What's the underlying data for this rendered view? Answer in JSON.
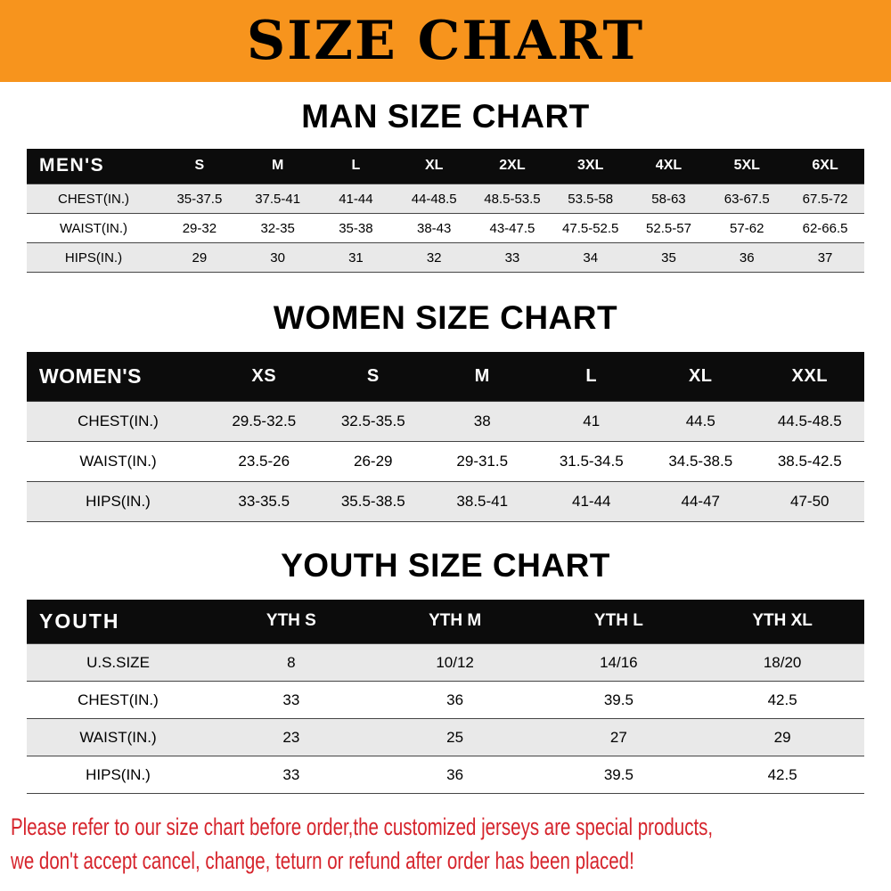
{
  "banner": {
    "title": "SIZE CHART"
  },
  "colors": {
    "banner_bg": "#f7941d",
    "table_header_bg": "#0c0c0c",
    "row_alt_gray": "#e9e9e9",
    "note_red": "#d6242c"
  },
  "sections": [
    {
      "heading": "MAN SIZE CHART",
      "table": {
        "header": [
          "MEN'S",
          "S",
          "M",
          "L",
          "XL",
          "2XL",
          "3XL",
          "4XL",
          "5XL",
          "6XL"
        ],
        "rows": [
          [
            "CHEST(IN.)",
            "35-37.5",
            "37.5-41",
            "41-44",
            "44-48.5",
            "48.5-53.5",
            "53.5-58",
            "58-63",
            "63-67.5",
            "67.5-72"
          ],
          [
            "WAIST(IN.)",
            "29-32",
            "32-35",
            "35-38",
            "38-43",
            "43-47.5",
            "47.5-52.5",
            "52.5-57",
            "57-62",
            "62-66.5"
          ],
          [
            "HIPS(IN.)",
            "29",
            "30",
            "31",
            "32",
            "33",
            "34",
            "35",
            "36",
            "37"
          ]
        ]
      }
    },
    {
      "heading": "WOMEN SIZE CHART",
      "table": {
        "header": [
          "WOMEN'S",
          "XS",
          "S",
          "M",
          "L",
          "XL",
          "XXL"
        ],
        "rows": [
          [
            "CHEST(IN.)",
            "29.5-32.5",
            "32.5-35.5",
            "38",
            "41",
            "44.5",
            "44.5-48.5"
          ],
          [
            "WAIST(IN.)",
            "23.5-26",
            "26-29",
            "29-31.5",
            "31.5-34.5",
            "34.5-38.5",
            "38.5-42.5"
          ],
          [
            "HIPS(IN.)",
            "33-35.5",
            "35.5-38.5",
            "38.5-41",
            "41-44",
            "44-47",
            "47-50"
          ]
        ]
      }
    },
    {
      "heading": "YOUTH SIZE CHART",
      "table": {
        "header": [
          "YOUTH",
          "YTH S",
          "YTH M",
          "YTH L",
          "YTH XL"
        ],
        "rows": [
          [
            "U.S.SIZE",
            "8",
            "10/12",
            "14/16",
            "18/20"
          ],
          [
            "CHEST(IN.)",
            "33",
            "36",
            "39.5",
            "42.5"
          ],
          [
            "WAIST(IN.)",
            "23",
            "25",
            "27",
            "29"
          ],
          [
            "HIPS(IN.)",
            "33",
            "36",
            "39.5",
            "42.5"
          ]
        ]
      }
    }
  ],
  "note": {
    "line1": "Please refer to our size chart before order,the customized jerseys are special products,",
    "line2": "we don't accept cancel, change, teturn or refund after order has been placed!"
  }
}
